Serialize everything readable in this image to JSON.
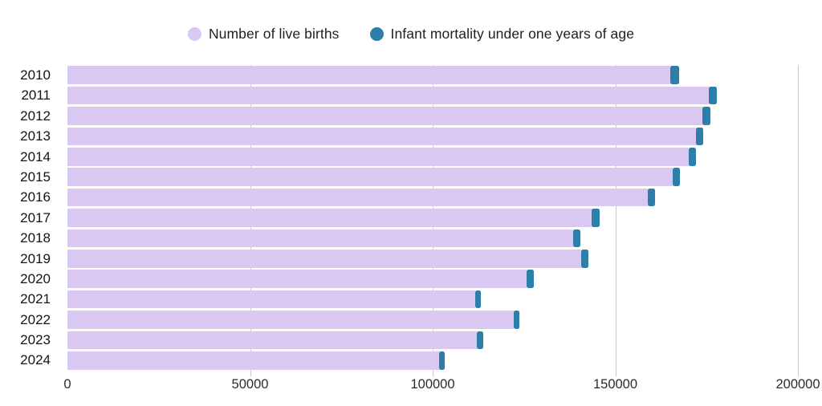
{
  "chart_data": {
    "type": "bar",
    "orientation": "horizontal",
    "stacked": true,
    "title": "",
    "xlabel": "",
    "ylabel": "",
    "xlim": [
      0,
      200000
    ],
    "x_ticks": [
      0,
      50000,
      100000,
      150000,
      200000
    ],
    "x_tick_labels": [
      "0",
      "50000",
      "100000",
      "150000",
      "200000"
    ],
    "grid": "vertical",
    "legend_position": "top",
    "categories": [
      "2010",
      "2011",
      "2012",
      "2013",
      "2014",
      "2015",
      "2016",
      "2017",
      "2018",
      "2019",
      "2020",
      "2021",
      "2022",
      "2023",
      "2024"
    ],
    "series": [
      {
        "name": "Number of live births",
        "color": "#d9c9f2",
        "values": [
          165000,
          175700,
          173900,
          172000,
          170000,
          165700,
          158900,
          143600,
          138500,
          140700,
          125700,
          111700,
          122100,
          112000,
          101700
        ]
      },
      {
        "name": "Infant mortality under one years of age",
        "color": "#2d7fa9",
        "values": [
          2400,
          2200,
          2200,
          2100,
          2050,
          2000,
          2050,
          2050,
          2050,
          2050,
          1950,
          1550,
          1650,
          1900,
          1700
        ]
      }
    ],
    "colors": {
      "background": "#ffffff",
      "gridline": "#c9c9c9",
      "axis_text": "#2b2b2b",
      "label_text": "#141414"
    }
  }
}
